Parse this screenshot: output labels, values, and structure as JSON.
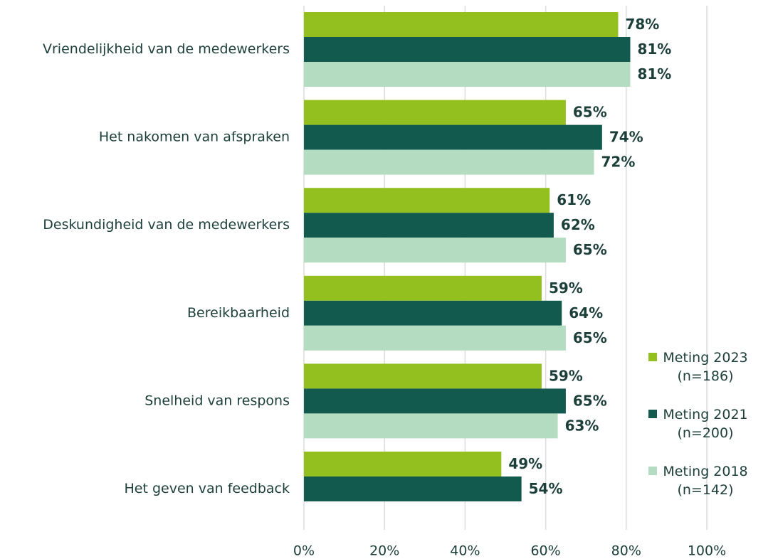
{
  "chart_data": {
    "type": "bar",
    "orientation": "horizontal",
    "categories": [
      "Vriendelijkheid van de medewerkers",
      "Het nakomen van afspraken",
      "Deskundigheid van de medewerkers",
      "Bereikbaarheid",
      "Snelheid van respons",
      "Het geven van feedback"
    ],
    "series": [
      {
        "name": "Meting 2023 (n=186)",
        "color": "#93c01f",
        "values": [
          78,
          65,
          61,
          59,
          59,
          49
        ],
        "value_labels": [
          "78%",
          "65%",
          "61%",
          "59%",
          "59%",
          "49%"
        ]
      },
      {
        "name": "Meting 2021 (n=200)",
        "color": "#115a4d",
        "values": [
          81,
          74,
          62,
          64,
          65,
          54
        ],
        "value_labels": [
          "81%",
          "74%",
          "62%",
          "64%",
          "65%",
          "54%"
        ]
      },
      {
        "name": "Meting 2018 (n=142)",
        "color": "#b3dcc0",
        "values": [
          81,
          72,
          65,
          65,
          63,
          null
        ],
        "value_labels": [
          "81%",
          "72%",
          "65%",
          "65%",
          "63%",
          null
        ]
      }
    ],
    "xlim": [
      0,
      100
    ],
    "xticks": [
      {
        "value": 0,
        "label": "0%"
      },
      {
        "value": 20,
        "label": "20%"
      },
      {
        "value": 40,
        "label": "40%"
      },
      {
        "value": 60,
        "label": "60%"
      },
      {
        "value": 80,
        "label": "80%"
      },
      {
        "value": 100,
        "label": "100%"
      }
    ],
    "grid": true,
    "legend": "right"
  }
}
